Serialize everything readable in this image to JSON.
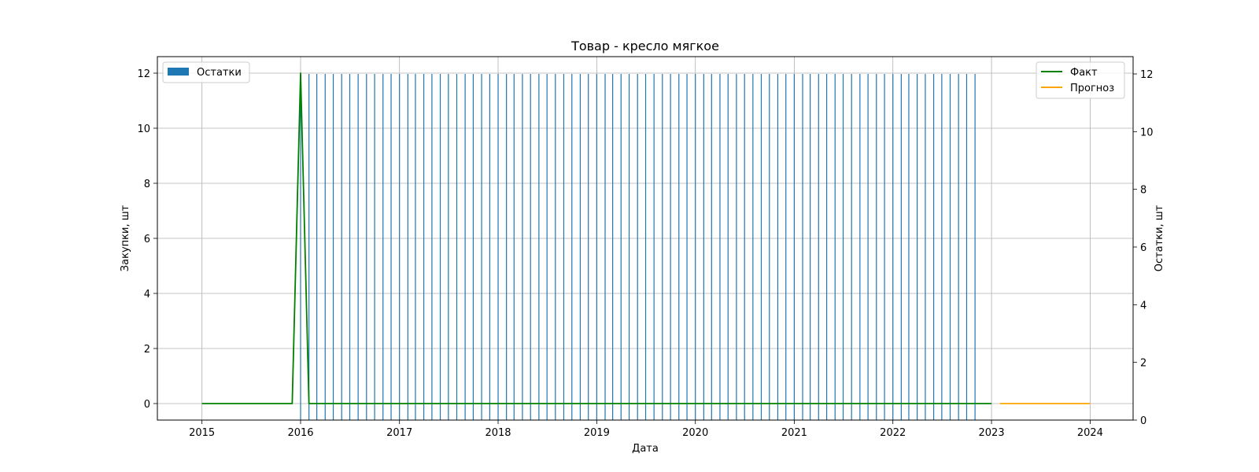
{
  "chart_data": {
    "type": "bar+line",
    "title": "Товар - кресло мягкое",
    "xlabel": "Дата",
    "ylabel_left": "Закупки, шт",
    "ylabel_right": "Остатки, шт",
    "x_range": [
      "2014-07-20",
      "2024-06-08"
    ],
    "x_ticks": [
      "2015",
      "2016",
      "2017",
      "2018",
      "2019",
      "2020",
      "2021",
      "2022",
      "2023",
      "2024"
    ],
    "y_left": {
      "range": [
        -0.6,
        12.6
      ],
      "ticks": [
        0,
        2,
        4,
        6,
        8,
        10,
        12
      ]
    },
    "y_right": {
      "range": [
        0,
        12.6
      ],
      "ticks": [
        0,
        2,
        4,
        6,
        8,
        10,
        12
      ]
    },
    "grid": true,
    "legend_left": {
      "location": "upper left",
      "entries": [
        "Остатки"
      ]
    },
    "legend_right": {
      "location": "upper right",
      "entries": [
        "Факт",
        "Прогноз"
      ]
    },
    "colors": {
      "Остатки": "#1f77b4",
      "Факт": "#008000",
      "Прогноз": "#ffa500"
    },
    "series": [
      {
        "name": "Остатки",
        "kind": "bar",
        "axis": "right",
        "start": "2016-01",
        "months": 83,
        "value": 12
      },
      {
        "name": "Факт",
        "kind": "line",
        "axis": "left",
        "x": [
          "2015-01",
          "2015-12",
          "2016-01",
          "2016-02",
          "2023-01"
        ],
        "y": [
          0,
          0,
          12,
          0,
          0
        ]
      },
      {
        "name": "Прогноз",
        "kind": "line",
        "axis": "left",
        "x": [
          "2023-02",
          "2024-01"
        ],
        "y": [
          0,
          0
        ]
      }
    ]
  }
}
